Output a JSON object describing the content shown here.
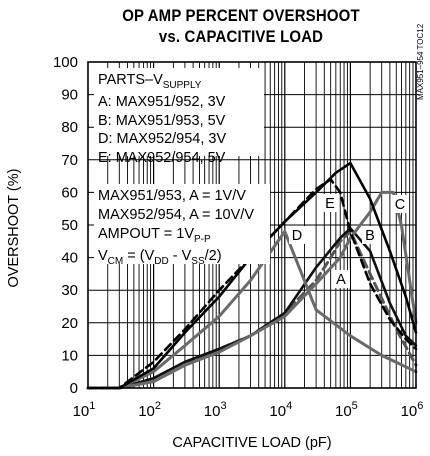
{
  "chart_data": {
    "type": "line",
    "title_line1": "OP AMP PERCENT OVERSHOOT",
    "title_line2": "vs. CAPACITIVE LOAD",
    "xlabel": "CAPACITIVE LOAD (pF)",
    "ylabel": "OVERSHOOT (%)",
    "x_scale": "log",
    "xlim": [
      10,
      1000000
    ],
    "ylim": [
      0,
      100
    ],
    "grid": true,
    "x_tick_base": "10",
    "x_tick_exponents": [
      "1",
      "2",
      "3",
      "4",
      "5",
      "6"
    ],
    "y_ticks": [
      0,
      10,
      20,
      30,
      40,
      50,
      60,
      70,
      80,
      90,
      100
    ],
    "code": "MAX951–954 TOC12",
    "legend": {
      "header_main": "PARTS–V",
      "header_sub": "SUPPLY",
      "entries": [
        "A: MAX951/952, 3V",
        "B: MAX951/953, 5V",
        "D: MAX952/954, 3V",
        "E: MAX952/954, 5V"
      ]
    },
    "conditions": {
      "line1": "MAX951/953, A = 1V/V",
      "line2": "MAX952/954, A = 10V/V",
      "line3_main": "AMPOUT = 1V",
      "line3_sub": "P-P",
      "line4_a": "V",
      "line4_a_sub": "CM",
      "line4_b": " = (V",
      "line4_b_sub": "DD",
      "line4_c": " - V",
      "line4_c_sub": "SS",
      "line4_d": "/2)"
    },
    "series": [
      {
        "name": "A",
        "x": [
          10,
          30,
          100,
          300,
          1000,
          3000,
          10000,
          30000,
          50000,
          70000,
          100000,
          200000,
          500000,
          1000000
        ],
        "y": [
          0,
          0,
          2,
          7,
          12,
          16,
          23,
          33,
          40,
          45,
          48,
          35,
          18,
          7
        ]
      },
      {
        "name": "B",
        "x": [
          10,
          30,
          100,
          300,
          1000,
          3000,
          10000,
          30000,
          70000,
          100000,
          200000,
          400000,
          700000,
          1000000
        ],
        "y": [
          0,
          0,
          3,
          8,
          12,
          16,
          23,
          37,
          46,
          49,
          42,
          26,
          16,
          13
        ]
      },
      {
        "name": "C",
        "x": [
          10,
          30,
          100,
          300,
          1000,
          3000,
          10000,
          30000,
          70000,
          100000,
          200000,
          300000,
          450000,
          600000,
          1000000
        ],
        "y": [
          0,
          0,
          2,
          7,
          11,
          16,
          22,
          32,
          40,
          46,
          54,
          60,
          60,
          50,
          20
        ]
      },
      {
        "name": "D",
        "x": [
          10,
          30,
          100,
          300,
          1000,
          3000,
          10000,
          30000,
          100000,
          300000,
          1000000
        ],
        "y": [
          0,
          0,
          5,
          13,
          22,
          33,
          48,
          24,
          16,
          10,
          5
        ]
      },
      {
        "name": "E",
        "x": [
          10,
          30,
          100,
          300,
          1000,
          3000,
          10000,
          30000,
          50000,
          70000,
          100000,
          200000,
          400000,
          700000,
          1000000
        ],
        "y": [
          0,
          0,
          8,
          18,
          30,
          40,
          51,
          61,
          64,
          60,
          48,
          32,
          21,
          15,
          12
        ]
      },
      {
        "name": "",
        "x": [
          10,
          30,
          100,
          300,
          1000,
          3000,
          10000,
          30000,
          60000,
          100000,
          200000,
          400000,
          700000,
          1000000
        ],
        "y": [
          0,
          0,
          6,
          17,
          28,
          40,
          51,
          60,
          66,
          69,
          58,
          42,
          28,
          17
        ]
      }
    ],
    "colors": {
      "A": "#555555",
      "B": "#111111",
      "C": "#6a6a6a",
      "D": "#6a6a6a",
      "E": "#000000",
      "unlabeled": "#000000",
      "grid": "#000000"
    },
    "curve_labels": [
      "A",
      "B",
      "C",
      "D",
      "E"
    ]
  }
}
